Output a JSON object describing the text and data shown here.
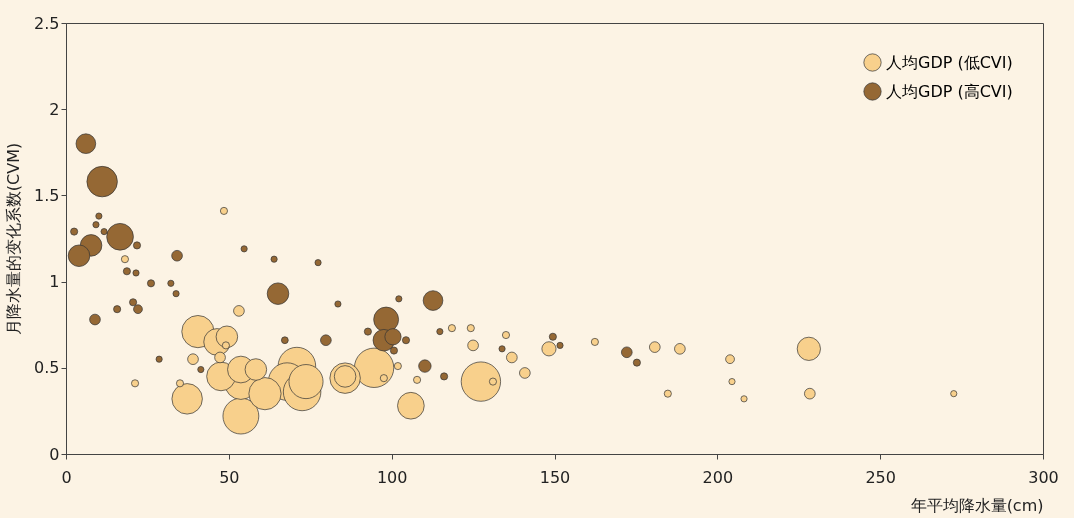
{
  "chart_data": {
    "type": "bubble",
    "xlabel": "年平均降水量(cm)",
    "ylabel": "月降水量的变化系数(CVM)",
    "xlim": [
      0,
      300
    ],
    "xticks": [
      0,
      50,
      100,
      150,
      200,
      250,
      300
    ],
    "ylim": [
      0,
      2.5
    ],
    "yticks": [
      0,
      0.5,
      1,
      1.5,
      2,
      2.5
    ],
    "grid": false,
    "legend": "top right",
    "marker": "circle",
    "series": [
      {
        "name": "人均GDP (低CVI)",
        "color": "#f8d08c",
        "x": [
          48.5,
          18.1,
          53.1,
          40.5,
          49.4,
          46.4,
          49.1,
          47.3,
          39.0,
          21.2,
          35.0,
          37.2,
          47.6,
          53.7,
          58.3,
          53.7,
          61.1,
          53.7,
          70.9,
          73.7,
          67.9,
          72.5,
          85.7,
          85.7,
          94.6,
          97.6,
          101.9,
          107.8,
          105.9,
          118.5,
          124.3,
          125.0,
          127.4,
          131.1,
          135.1,
          136.9,
          140.9,
          148.3,
          162.4,
          180.8,
          188.5,
          203.9,
          204.5,
          228.1,
          184.8,
          208.2,
          228.4,
          272.6
        ],
        "values": [
          1.41,
          1.13,
          0.83,
          0.71,
          0.68,
          0.65,
          0.63,
          0.56,
          0.55,
          0.41,
          0.41,
          0.32,
          0.45,
          0.49,
          0.49,
          0.41,
          0.35,
          0.22,
          0.51,
          0.42,
          0.42,
          0.36,
          0.44,
          0.45,
          0.5,
          0.44,
          0.51,
          0.43,
          0.28,
          0.73,
          0.73,
          0.63,
          0.42,
          0.42,
          0.69,
          0.56,
          0.47,
          0.61,
          0.65,
          0.62,
          0.61,
          0.55,
          0.42,
          0.61,
          0.35,
          0.32,
          0.35,
          0.35
        ],
        "sizes": [
          0.033,
          0.033,
          0.074,
          0.67,
          0.3,
          0.46,
          0.033,
          0.074,
          0.074,
          0.033,
          0.033,
          0.6,
          0.53,
          0.46,
          0.3,
          0.67,
          0.67,
          0.83,
          0.91,
          0.75,
          0.91,
          0.91,
          0.6,
          0.3,
          1,
          0.033,
          0.033,
          0.033,
          0.46,
          0.033,
          0.033,
          0.074,
          1,
          0.033,
          0.033,
          0.074,
          0.074,
          0.13,
          0.033,
          0.074,
          0.074,
          0.05,
          0.025,
          0.35,
          0.033,
          0.025,
          0.074,
          0.025
        ]
      },
      {
        "name": "人均GDP (高CVI)",
        "color": "#956834",
        "x": [
          6.1,
          11.1,
          10.1,
          9.2,
          2.5,
          11.7,
          7.7,
          16.6,
          21.8,
          4.0,
          34.1,
          54.7,
          63.9,
          77.4,
          18.7,
          21.5,
          26.1,
          32.2,
          33.8,
          65.1,
          83.5,
          20.6,
          15.7,
          22.1,
          8.9,
          67.2,
          79.8,
          28.6,
          41.4,
          102.2,
          112.7,
          98.3,
          100.4,
          97.6,
          92.7,
          104.4,
          100.7,
          114.8,
          110.2,
          116.1,
          133.9,
          149.5,
          151.7,
          172.2,
          175.3
        ],
        "values": [
          1.8,
          1.58,
          1.38,
          1.33,
          1.29,
          1.29,
          1.21,
          1.26,
          1.21,
          1.15,
          1.15,
          1.19,
          1.13,
          1.11,
          1.06,
          1.05,
          0.99,
          0.99,
          0.93,
          0.93,
          0.87,
          0.88,
          0.84,
          0.84,
          0.78,
          0.66,
          0.66,
          0.55,
          0.49,
          0.9,
          0.89,
          0.78,
          0.68,
          0.66,
          0.71,
          0.66,
          0.6,
          0.71,
          0.51,
          0.45,
          0.61,
          0.68,
          0.63,
          0.59,
          0.53
        ],
        "sizes": [
          0.25,
          0.6,
          0.025,
          0.025,
          0.033,
          0.025,
          0.3,
          0.46,
          0.033,
          0.3,
          0.074,
          0.025,
          0.025,
          0.025,
          0.033,
          0.025,
          0.033,
          0.025,
          0.025,
          0.3,
          0.025,
          0.033,
          0.033,
          0.05,
          0.074,
          0.03,
          0.074,
          0.025,
          0.025,
          0.025,
          0.25,
          0.4,
          0.17,
          0.3,
          0.033,
          0.033,
          0.033,
          0.025,
          0.1,
          0.033,
          0.025,
          0.033,
          0.025,
          0.074,
          0.033
        ]
      }
    ]
  }
}
